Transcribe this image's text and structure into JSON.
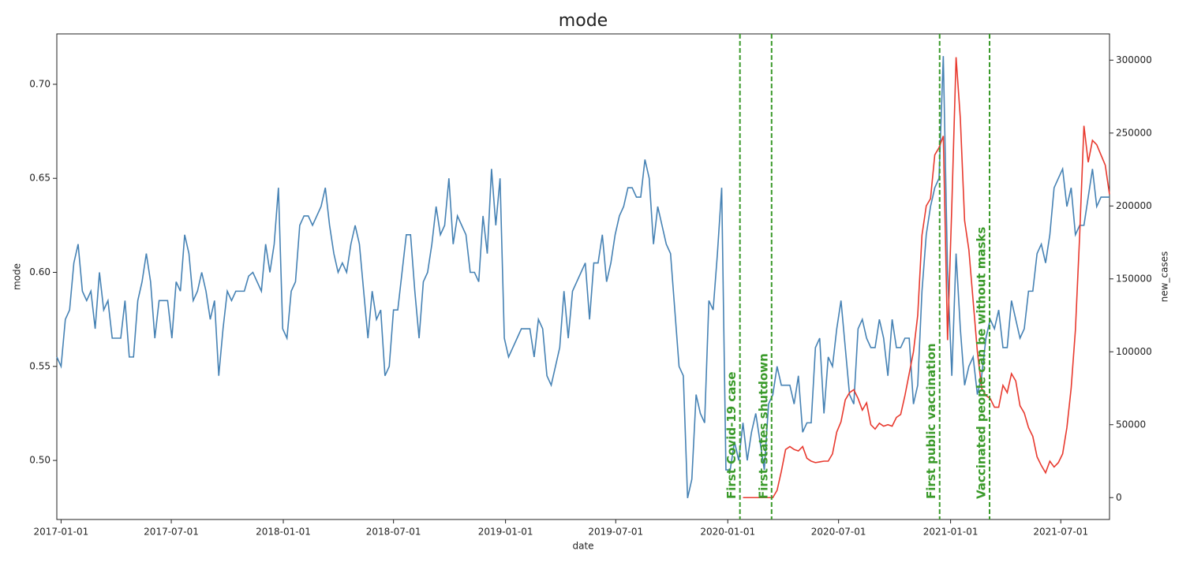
{
  "chart_data": {
    "type": "line",
    "title": "mode",
    "xlabel": "date",
    "ylabel": "mode",
    "y2label": "new_cases",
    "x": [
      "2016-12-25",
      "2017-01-01",
      "2017-01-08",
      "2017-01-15",
      "2017-01-22",
      "2017-01-29",
      "2017-02-05",
      "2017-02-12",
      "2017-02-19",
      "2017-02-26",
      "2017-03-05",
      "2017-03-12",
      "2017-03-19",
      "2017-03-26",
      "2017-04-02",
      "2017-04-09",
      "2017-04-16",
      "2017-04-23",
      "2017-04-30",
      "2017-05-07",
      "2017-05-14",
      "2017-05-21",
      "2017-05-28",
      "2017-06-04",
      "2017-06-11",
      "2017-06-18",
      "2017-06-25",
      "2017-07-02",
      "2017-07-09",
      "2017-07-16",
      "2017-07-23",
      "2017-07-30",
      "2017-08-06",
      "2017-08-13",
      "2017-08-20",
      "2017-08-27",
      "2017-09-03",
      "2017-09-10",
      "2017-09-17",
      "2017-09-24",
      "2017-10-01",
      "2017-10-08",
      "2017-10-15",
      "2017-10-22",
      "2017-10-29",
      "2017-11-05",
      "2017-11-12",
      "2017-11-19",
      "2017-11-26",
      "2017-12-03",
      "2017-12-10",
      "2017-12-17",
      "2017-12-24",
      "2017-12-31",
      "2018-01-07",
      "2018-01-14",
      "2018-01-21",
      "2018-01-28",
      "2018-02-04",
      "2018-02-11",
      "2018-02-18",
      "2018-02-25",
      "2018-03-04",
      "2018-03-11",
      "2018-03-18",
      "2018-03-25",
      "2018-04-01",
      "2018-04-08",
      "2018-04-15",
      "2018-04-22",
      "2018-04-29",
      "2018-05-06",
      "2018-05-13",
      "2018-05-20",
      "2018-05-27",
      "2018-06-03",
      "2018-06-10",
      "2018-06-17",
      "2018-06-24",
      "2018-07-01",
      "2018-07-08",
      "2018-07-15",
      "2018-07-22",
      "2018-07-29",
      "2018-08-05",
      "2018-08-12",
      "2018-08-19",
      "2018-08-26",
      "2018-09-02",
      "2018-09-09",
      "2018-09-16",
      "2018-09-23",
      "2018-09-30",
      "2018-10-07",
      "2018-10-14",
      "2018-10-21",
      "2018-10-28",
      "2018-11-04",
      "2018-11-11",
      "2018-11-18",
      "2018-11-25",
      "2018-12-02",
      "2018-12-09",
      "2018-12-16",
      "2018-12-23",
      "2018-12-30",
      "2019-01-06",
      "2019-01-13",
      "2019-01-20",
      "2019-01-27",
      "2019-02-03",
      "2019-02-10",
      "2019-02-17",
      "2019-02-24",
      "2019-03-03",
      "2019-03-10",
      "2019-03-17",
      "2019-03-24",
      "2019-03-31",
      "2019-04-07",
      "2019-04-14",
      "2019-04-21",
      "2019-04-28",
      "2019-05-05",
      "2019-05-12",
      "2019-05-19",
      "2019-05-26",
      "2019-06-02",
      "2019-06-09",
      "2019-06-16",
      "2019-06-23",
      "2019-06-30",
      "2019-07-07",
      "2019-07-14",
      "2019-07-21",
      "2019-07-28",
      "2019-08-04",
      "2019-08-11",
      "2019-08-18",
      "2019-08-25",
      "2019-09-01",
      "2019-09-08",
      "2019-09-15",
      "2019-09-22",
      "2019-09-29",
      "2019-10-06",
      "2019-10-13",
      "2019-10-20",
      "2019-10-27",
      "2019-11-03",
      "2019-11-10",
      "2019-11-17",
      "2019-11-24",
      "2019-12-01",
      "2019-12-08",
      "2019-12-15",
      "2019-12-22",
      "2019-12-29",
      "2020-01-05",
      "2020-01-12",
      "2020-01-19",
      "2020-01-26",
      "2020-02-02",
      "2020-02-09",
      "2020-02-16",
      "2020-02-23",
      "2020-03-01",
      "2020-03-08",
      "2020-03-15",
      "2020-03-22",
      "2020-03-29",
      "2020-04-05",
      "2020-04-12",
      "2020-04-19",
      "2020-04-26",
      "2020-05-03",
      "2020-05-10",
      "2020-05-17",
      "2020-05-24",
      "2020-05-31",
      "2020-06-07",
      "2020-06-14",
      "2020-06-21",
      "2020-06-28",
      "2020-07-05",
      "2020-07-12",
      "2020-07-19",
      "2020-07-26",
      "2020-08-02",
      "2020-08-09",
      "2020-08-16",
      "2020-08-23",
      "2020-08-30",
      "2020-09-06",
      "2020-09-13",
      "2020-09-20",
      "2020-09-27",
      "2020-10-04",
      "2020-10-11",
      "2020-10-18",
      "2020-10-25",
      "2020-11-01",
      "2020-11-08",
      "2020-11-15",
      "2020-11-22",
      "2020-11-29",
      "2020-12-06",
      "2020-12-13",
      "2020-12-20",
      "2020-12-27",
      "2021-01-03",
      "2021-01-10",
      "2021-01-17",
      "2021-01-24",
      "2021-01-31",
      "2021-02-07",
      "2021-02-14",
      "2021-02-21",
      "2021-02-28",
      "2021-03-07",
      "2021-03-14",
      "2021-03-21",
      "2021-03-28",
      "2021-04-04",
      "2021-04-11",
      "2021-04-18",
      "2021-04-25",
      "2021-05-02",
      "2021-05-09",
      "2021-05-16",
      "2021-05-23",
      "2021-05-30",
      "2021-06-06",
      "2021-06-13",
      "2021-06-20",
      "2021-06-27",
      "2021-07-04",
      "2021-07-11",
      "2021-07-18",
      "2021-07-25",
      "2021-08-01",
      "2021-08-08",
      "2021-08-15",
      "2021-08-22",
      "2021-08-29",
      "2021-09-05",
      "2021-09-12",
      "2021-09-19"
    ],
    "series": [
      {
        "name": "mode",
        "color": "#4682b4",
        "values": [
          0.555,
          0.55,
          0.575,
          0.58,
          0.605,
          0.615,
          0.59,
          0.585,
          0.59,
          0.57,
          0.6,
          0.58,
          0.585,
          0.565,
          0.565,
          0.565,
          0.585,
          0.555,
          0.555,
          0.585,
          0.595,
          0.61,
          0.595,
          0.565,
          0.585,
          0.585,
          0.585,
          0.565,
          0.595,
          0.59,
          0.62,
          0.61,
          0.585,
          0.59,
          0.6,
          0.59,
          0.575,
          0.585,
          0.545,
          0.57,
          0.59,
          0.585,
          0.59,
          0.59,
          0.59,
          0.598,
          0.6,
          0.595,
          0.59,
          0.615,
          0.6,
          0.615,
          0.645,
          0.57,
          0.565,
          0.59,
          0.595,
          0.625,
          0.63,
          0.63,
          0.625,
          0.63,
          0.635,
          0.645,
          0.625,
          0.61,
          0.6,
          0.605,
          0.6,
          0.615,
          0.625,
          0.615,
          0.59,
          0.565,
          0.59,
          0.575,
          0.58,
          0.545,
          0.55,
          0.58,
          0.58,
          0.6,
          0.62,
          0.62,
          0.59,
          0.565,
          0.595,
          0.6,
          0.615,
          0.635,
          0.62,
          0.625,
          0.65,
          0.615,
          0.63,
          0.625,
          0.62,
          0.6,
          0.6,
          0.595,
          0.63,
          0.61,
          0.655,
          0.625,
          0.65,
          0.565,
          0.555,
          0.56,
          0.565,
          0.57,
          0.57,
          0.57,
          0.555,
          0.575,
          0.57,
          0.545,
          0.54,
          0.55,
          0.56,
          0.59,
          0.565,
          0.59,
          0.595,
          0.6,
          0.605,
          0.575,
          0.605,
          0.605,
          0.62,
          0.595,
          0.605,
          0.62,
          0.63,
          0.635,
          0.645,
          0.645,
          0.64,
          0.64,
          0.66,
          0.65,
          0.615,
          0.635,
          0.625,
          0.615,
          0.61,
          0.58,
          0.55,
          0.545,
          0.48,
          0.49,
          0.535,
          0.525,
          0.52,
          0.585,
          0.58,
          0.61,
          0.645,
          0.495,
          0.495,
          0.51,
          0.5,
          0.52,
          0.5,
          0.515,
          0.525,
          0.51,
          0.495,
          0.53,
          0.535,
          0.55,
          0.54,
          0.54,
          0.54,
          0.53,
          0.545,
          0.515,
          0.52,
          0.52,
          0.56,
          0.565,
          0.525,
          0.555,
          0.55,
          0.57,
          0.585,
          0.56,
          0.535,
          0.53,
          0.57,
          0.575,
          0.565,
          0.56,
          0.56,
          0.575,
          0.565,
          0.545,
          0.575,
          0.56,
          0.56,
          0.565,
          0.565,
          0.53,
          0.54,
          0.59,
          0.62,
          0.635,
          0.645,
          0.65,
          0.715,
          0.6,
          0.545,
          0.61,
          0.57,
          0.54,
          0.55,
          0.555,
          0.535,
          0.545,
          0.565,
          0.575,
          0.57,
          0.58,
          0.56,
          0.56,
          0.585,
          0.575,
          0.565,
          0.57,
          0.59,
          0.59,
          0.61,
          0.615,
          0.605,
          0.62,
          0.645,
          0.65,
          0.655,
          0.635,
          0.645,
          0.62,
          0.625,
          0.625,
          0.64,
          0.655,
          0.635,
          0.64,
          0.64,
          0.64
        ]
      },
      {
        "name": "new_cases",
        "color": "#e8392e",
        "axis": "y2",
        "values": [
          null,
          null,
          null,
          null,
          null,
          null,
          null,
          null,
          null,
          null,
          null,
          null,
          null,
          null,
          null,
          null,
          null,
          null,
          null,
          null,
          null,
          null,
          null,
          null,
          null,
          null,
          null,
          null,
          null,
          null,
          null,
          null,
          null,
          null,
          null,
          null,
          null,
          null,
          null,
          null,
          null,
          null,
          null,
          null,
          null,
          null,
          null,
          null,
          null,
          null,
          null,
          null,
          null,
          null,
          null,
          null,
          null,
          null,
          null,
          null,
          null,
          null,
          null,
          null,
          null,
          null,
          null,
          null,
          null,
          null,
          null,
          null,
          null,
          null,
          null,
          null,
          null,
          null,
          null,
          null,
          null,
          null,
          null,
          null,
          null,
          null,
          null,
          null,
          null,
          null,
          null,
          null,
          null,
          null,
          null,
          null,
          null,
          null,
          null,
          null,
          null,
          null,
          null,
          null,
          null,
          null,
          null,
          null,
          null,
          null,
          null,
          null,
          null,
          null,
          null,
          null,
          null,
          null,
          null,
          null,
          null,
          null,
          null,
          null,
          null,
          null,
          null,
          null,
          null,
          null,
          null,
          null,
          null,
          null,
          null,
          null,
          null,
          null,
          null,
          null,
          null,
          null,
          null,
          null,
          null,
          null,
          null,
          null,
          null,
          null,
          null,
          null,
          null,
          null,
          null,
          null,
          null,
          null,
          null,
          null,
          null,
          0,
          0,
          0,
          0,
          0,
          0,
          0,
          0,
          5000,
          18000,
          33000,
          35000,
          33000,
          32000,
          35000,
          27000,
          25000,
          24000,
          24500,
          25000,
          25000,
          30000,
          45000,
          52000,
          67000,
          72000,
          74000,
          68000,
          60000,
          65000,
          50000,
          47000,
          51000,
          49000,
          50000,
          49000,
          55000,
          57000,
          70000,
          85000,
          100000,
          125000,
          180000,
          200000,
          205000,
          235000,
          240000,
          248000,
          108000,
          200000,
          302000,
          260000,
          190000,
          170000,
          135000,
          100000,
          75000,
          70000,
          68000,
          62000,
          62000,
          77000,
          72000,
          85000,
          80000,
          63000,
          58000,
          48000,
          42000,
          28000,
          22000,
          17000,
          25000,
          21000,
          24000,
          30000,
          48000,
          75000,
          115000,
          180000,
          255000,
          230000,
          245000,
          242000,
          235000,
          228000,
          208000
        ]
      }
    ],
    "xlim": [
      "2016-12-25",
      "2021-09-19"
    ],
    "xticks": [
      "2017-01-01",
      "2017-07-01",
      "2018-01-01",
      "2018-07-01",
      "2019-01-01",
      "2019-07-01",
      "2020-01-01",
      "2020-07-01",
      "2021-01-01",
      "2021-07-01"
    ],
    "ylim": [
      0.4686,
      0.7268
    ],
    "yticks": [
      {
        "value": 0.5,
        "label": "0.50"
      },
      0.55,
      {
        "value": 0.6,
        "label": "0.60"
      },
      0.65,
      {
        "value": 0.7,
        "label": "0.70"
      }
    ],
    "y2lim": [
      -15000,
      318000
    ],
    "y2ticks": [
      0,
      50000,
      100000,
      150000,
      200000,
      250000,
      300000
    ],
    "annotations": [
      {
        "x": "2020-01-21",
        "text": "First Covid-19 case",
        "color": "#3a9a2a"
      },
      {
        "x": "2020-03-13",
        "text": "First states shutdown",
        "color": "#3a9a2a"
      },
      {
        "x": "2020-12-14",
        "text": "First public vaccination",
        "color": "#3a9a2a"
      },
      {
        "x": "2021-03-06",
        "text": "Vaccinated people can be without masks",
        "color": "#3a9a2a"
      }
    ]
  }
}
